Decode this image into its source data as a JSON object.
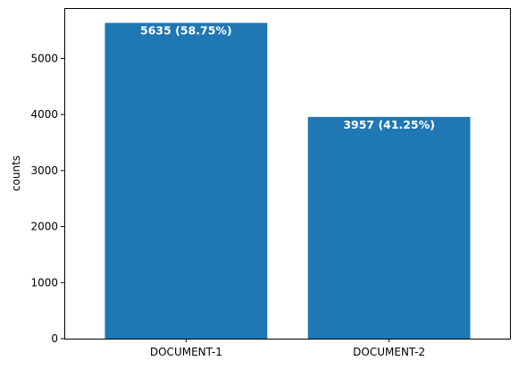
{
  "chart_data": {
    "type": "bar",
    "categories": [
      "DOCUMENT-1",
      "DOCUMENT-2"
    ],
    "values": [
      5635,
      3957
    ],
    "bar_labels": [
      "5635 (58.75%)",
      "3957 (41.25%)"
    ],
    "xlabel": "",
    "ylabel": "counts",
    "ylim": [
      0,
      5900
    ],
    "yticks": [
      0,
      1000,
      2000,
      3000,
      4000,
      5000
    ],
    "grid": false,
    "bar_color": "#1f77b4",
    "bar_label_color": "#ffffff"
  }
}
